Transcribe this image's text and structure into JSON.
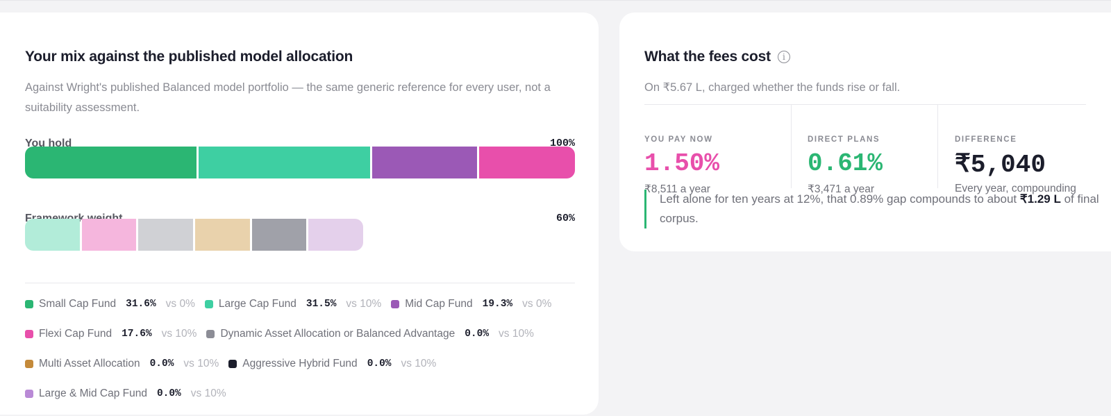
{
  "mix": {
    "title": "Your mix against the published model allocation",
    "subtitle": "Against Wright's published Balanced model portfolio — the same generic reference for every user, not a suitability assessment.",
    "hold": {
      "label": "You hold",
      "pct": "100%",
      "segments": [
        {
          "fund": "Small Cap Fund",
          "share": 31.6,
          "color": "#2bb673"
        },
        {
          "fund": "Large Cap Fund",
          "share": 31.5,
          "color": "#3ecfa2"
        },
        {
          "fund": "Mid Cap Fund",
          "share": 19.3,
          "color": "#9b59b6"
        },
        {
          "fund": "Flexi Cap Fund",
          "share": 17.6,
          "color": "#e84fab"
        }
      ]
    },
    "framework": {
      "label": "Framework weight",
      "pct": "60%",
      "segments": [
        {
          "fund": "Large Cap Fund",
          "share": 10,
          "color": "#b2ecd9"
        },
        {
          "fund": "Flexi Cap Fund",
          "share": 10,
          "color": "#f5b6dd"
        },
        {
          "fund": "Dynamic Asset Allocation or Balanced Advantage",
          "share": 10,
          "color": "#d0d1d5"
        },
        {
          "fund": "Multi Asset Allocation",
          "share": 10,
          "color": "#e9d2ac"
        },
        {
          "fund": "Aggressive Hybrid Fund",
          "share": 10,
          "color": "#a0a1a9"
        },
        {
          "fund": "Large & Mid Cap Fund",
          "share": 10,
          "color": "#e4d0eb"
        }
      ]
    },
    "legend_rows": [
      [
        {
          "name": "Small Cap Fund",
          "value": "31.6%",
          "vs": "vs 0%",
          "color": "#2bb673"
        },
        {
          "name": "Large Cap Fund",
          "value": "31.5%",
          "vs": "vs 10%",
          "color": "#3ecfa2"
        },
        {
          "name": "Mid Cap Fund",
          "value": "19.3%",
          "vs": "vs 0%",
          "color": "#9b59b6"
        }
      ],
      [
        {
          "name": "Flexi Cap Fund",
          "value": "17.6%",
          "vs": "vs 10%",
          "color": "#e84fab"
        },
        {
          "name": "Dynamic Asset Allocation or Balanced Advantage",
          "value": "0.0%",
          "vs": "vs 10%",
          "color": "#8c8d96"
        }
      ],
      [
        {
          "name": "Multi Asset Allocation",
          "value": "0.0%",
          "vs": "vs 10%",
          "color": "#c48a3a"
        },
        {
          "name": "Aggressive Hybrid Fund",
          "value": "0.0%",
          "vs": "vs 10%",
          "color": "#1b1d2b"
        }
      ],
      [
        {
          "name": "Large & Mid Cap Fund",
          "value": "0.0%",
          "vs": "vs 10%",
          "color": "#b98ad6"
        }
      ]
    ]
  },
  "fees": {
    "title": "What the fees cost",
    "info_icon": "info-icon",
    "subtitle": "On ₹5.67 L, charged whether the funds rise or fall.",
    "stats": [
      {
        "label": "YOU PAY NOW",
        "value": "1.50%",
        "detail": "₹8,511 a year",
        "color": "#e84fab"
      },
      {
        "label": "DIRECT PLANS",
        "value": "0.61%",
        "detail": "₹3,471 a year",
        "color": "#2bb673"
      },
      {
        "label": "DIFFERENCE",
        "value": "₹5,040",
        "detail": "Every year, compounding",
        "color": "#1b1d2b"
      }
    ],
    "note": {
      "text": "Left alone for ten years at 12%, that 0.89% gap compounds to about ",
      "highlight": "₹1.29 L",
      "tail": " of final corpus."
    }
  }
}
